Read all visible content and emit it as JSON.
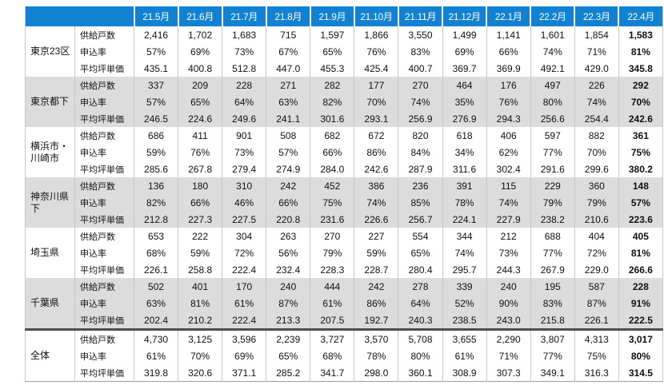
{
  "colors": {
    "header_blue": "#1181d2",
    "band_gray": "#dcdcdc",
    "divider_dark": "#4d4d4d",
    "grid_line": "#c6c6c6",
    "header_text": "#ffffff",
    "body_text": "#111111"
  },
  "chart_data": {
    "type": "table",
    "corner_label": "",
    "columns": [
      "21.5月",
      "21.6月",
      "21.7月",
      "21.8月",
      "21.9月",
      "21.10月",
      "21.11月",
      "21.12月",
      "22.1月",
      "22.2月",
      "22.3月",
      "22.4月"
    ],
    "metric_labels": [
      "供給戸数",
      "申込率",
      "平均坪単価"
    ],
    "regions": [
      {
        "name": "東京23区",
        "rows": [
          [
            "2,416",
            "1,702",
            "1,683",
            "715",
            "1,597",
            "1,866",
            "3,550",
            "1,499",
            "1,141",
            "1,601",
            "1,854",
            "1,583"
          ],
          [
            "57%",
            "69%",
            "73%",
            "67%",
            "65%",
            "76%",
            "83%",
            "69%",
            "66%",
            "74%",
            "71%",
            "81%"
          ],
          [
            "435.1",
            "400.8",
            "512.8",
            "447.0",
            "455.3",
            "425.4",
            "400.7",
            "369.7",
            "369.9",
            "492.1",
            "429.0",
            "345.8"
          ]
        ]
      },
      {
        "name": "東京都下",
        "rows": [
          [
            "337",
            "209",
            "228",
            "271",
            "282",
            "177",
            "270",
            "464",
            "176",
            "497",
            "226",
            "292"
          ],
          [
            "57%",
            "65%",
            "64%",
            "63%",
            "82%",
            "70%",
            "74%",
            "35%",
            "76%",
            "80%",
            "74%",
            "70%"
          ],
          [
            "246.5",
            "224.6",
            "249.6",
            "241.1",
            "301.6",
            "293.1",
            "256.9",
            "276.9",
            "294.3",
            "256.6",
            "254.4",
            "242.6"
          ]
        ]
      },
      {
        "name": "横浜市・川崎市",
        "rows": [
          [
            "686",
            "411",
            "901",
            "508",
            "682",
            "672",
            "820",
            "618",
            "406",
            "597",
            "882",
            "361"
          ],
          [
            "59%",
            "76%",
            "73%",
            "57%",
            "66%",
            "86%",
            "84%",
            "34%",
            "62%",
            "77%",
            "70%",
            "75%"
          ],
          [
            "285.6",
            "267.8",
            "279.4",
            "274.9",
            "284.0",
            "242.6",
            "287.9",
            "311.6",
            "302.4",
            "291.6",
            "299.6",
            "380.2"
          ]
        ]
      },
      {
        "name": "神奈川県下",
        "rows": [
          [
            "136",
            "180",
            "310",
            "242",
            "452",
            "386",
            "236",
            "391",
            "115",
            "229",
            "360",
            "148"
          ],
          [
            "82%",
            "66%",
            "46%",
            "66%",
            "75%",
            "74%",
            "85%",
            "78%",
            "74%",
            "79%",
            "79%",
            "57%"
          ],
          [
            "212.8",
            "227.3",
            "227.5",
            "220.8",
            "231.6",
            "226.6",
            "256.7",
            "224.1",
            "227.9",
            "238.2",
            "210.6",
            "223.6"
          ]
        ]
      },
      {
        "name": "埼玉県",
        "rows": [
          [
            "653",
            "222",
            "304",
            "263",
            "270",
            "227",
            "554",
            "344",
            "212",
            "688",
            "404",
            "405"
          ],
          [
            "68%",
            "59%",
            "72%",
            "56%",
            "79%",
            "59%",
            "65%",
            "74%",
            "73%",
            "77%",
            "72%",
            "81%"
          ],
          [
            "226.1",
            "258.8",
            "222.4",
            "232.4",
            "228.3",
            "228.7",
            "280.4",
            "295.7",
            "244.3",
            "267.9",
            "229.0",
            "266.6"
          ]
        ]
      },
      {
        "name": "千葉県",
        "rows": [
          [
            "502",
            "401",
            "170",
            "240",
            "444",
            "242",
            "278",
            "339",
            "240",
            "195",
            "587",
            "228"
          ],
          [
            "63%",
            "81%",
            "61%",
            "87%",
            "61%",
            "86%",
            "64%",
            "52%",
            "90%",
            "83%",
            "87%",
            "91%"
          ],
          [
            "202.4",
            "210.2",
            "222.4",
            "213.3",
            "207.5",
            "192.7",
            "240.3",
            "238.5",
            "243.0",
            "215.8",
            "226.1",
            "222.5"
          ]
        ]
      },
      {
        "name": "全体",
        "rows": [
          [
            "4,730",
            "3,125",
            "3,596",
            "2,239",
            "3,727",
            "3,570",
            "5,708",
            "3,655",
            "2,290",
            "3,807",
            "4,313",
            "3,017"
          ],
          [
            "61%",
            "70%",
            "69%",
            "65%",
            "68%",
            "78%",
            "80%",
            "61%",
            "71%",
            "77%",
            "75%",
            "80%"
          ],
          [
            "319.8",
            "320.6",
            "371.1",
            "285.2",
            "341.7",
            "298.0",
            "360.1",
            "308.9",
            "307.3",
            "349.1",
            "316.3",
            "314.5"
          ]
        ]
      }
    ],
    "layout": {
      "band_pattern": "alternating white / gray blocks per region",
      "thick_divider_before_region": "全体",
      "last_column_bold": true
    }
  }
}
